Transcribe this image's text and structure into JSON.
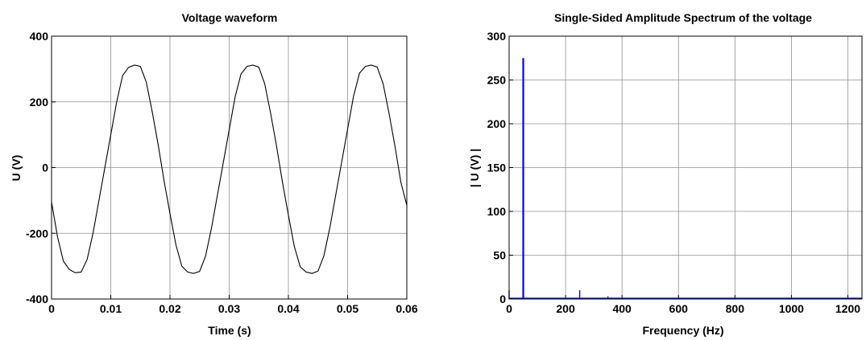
{
  "chart_data": [
    {
      "type": "line",
      "title": "Voltage waveform",
      "xlabel": "Time (s)",
      "ylabel": "U (V)",
      "xlim": [
        0,
        0.06
      ],
      "ylim": [
        -400,
        400
      ],
      "xticks": [
        "0",
        "0.01",
        "0.02",
        "0.03",
        "0.04",
        "0.05",
        "0.06"
      ],
      "yticks": [
        "-400",
        "-200",
        "0",
        "200",
        "400"
      ],
      "grid": true,
      "line_color": "#000000",
      "series": [
        {
          "x": [
            0,
            0.001,
            0.002,
            0.003,
            0.004,
            0.005,
            0.006,
            0.007,
            0.008,
            0.009,
            0.01,
            0.011,
            0.012,
            0.013,
            0.014,
            0.015,
            0.016,
            0.017,
            0.018,
            0.019,
            0.02,
            0.021,
            0.022,
            0.023,
            0.024,
            0.025,
            0.026,
            0.027,
            0.028,
            0.029,
            0.03,
            0.031,
            0.032,
            0.033,
            0.034,
            0.035,
            0.036,
            0.037,
            0.038,
            0.039,
            0.04,
            0.041,
            0.042,
            0.043,
            0.044,
            0.045,
            0.046,
            0.047,
            0.048,
            0.049,
            0.05,
            0.051,
            0.052,
            0.053,
            0.054,
            0.055,
            0.056,
            0.057,
            0.058,
            0.059,
            0.06
          ],
          "y": [
            -105,
            -210,
            -285,
            -310,
            -320,
            -318,
            -280,
            -200,
            -100,
            0,
            100,
            200,
            280,
            305,
            312,
            308,
            260,
            170,
            70,
            -40,
            -140,
            -235,
            -300,
            -318,
            -322,
            -316,
            -270,
            -185,
            -85,
            15,
            115,
            215,
            285,
            308,
            312,
            306,
            255,
            165,
            65,
            -45,
            -145,
            -240,
            -302,
            -318,
            -322,
            -315,
            -268,
            -183,
            -83,
            17,
            117,
            217,
            287,
            308,
            312,
            306,
            255,
            165,
            65,
            -45,
            -115
          ]
        }
      ]
    },
    {
      "type": "bar",
      "title": "Single-Sided Amplitude Spectrum of the voltage",
      "xlabel": "Frequency (Hz)",
      "ylabel": "| U (V) |",
      "xlim": [
        0,
        1250
      ],
      "ylim": [
        0,
        300
      ],
      "xticks": [
        "0",
        "200",
        "400",
        "600",
        "800",
        "1000",
        "1200"
      ],
      "yticks": [
        "0",
        "50",
        "100",
        "150",
        "200",
        "250",
        "300"
      ],
      "grid": true,
      "line_color": "#0000ff",
      "series": [
        {
          "x": [
            0,
            50,
            150,
            250,
            350,
            450,
            550,
            650
          ],
          "y": [
            10,
            275,
            1,
            10,
            3,
            1,
            1,
            0.5
          ]
        }
      ]
    }
  ]
}
